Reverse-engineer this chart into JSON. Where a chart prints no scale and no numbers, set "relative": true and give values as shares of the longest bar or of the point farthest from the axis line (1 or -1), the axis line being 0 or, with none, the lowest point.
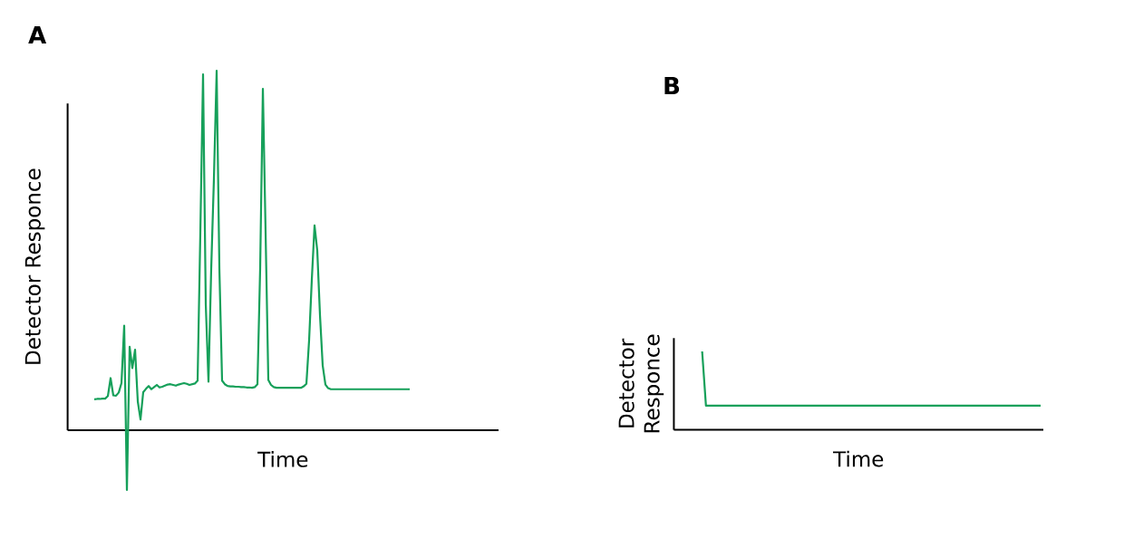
{
  "chart_data": [
    {
      "type": "line",
      "title": "A",
      "xlabel": "Time",
      "ylabel": "Detector Responce",
      "relative": true,
      "categories": [
        null,
        null,
        null,
        null,
        null,
        null,
        null,
        null,
        null,
        null,
        null,
        null,
        null,
        null,
        null,
        null,
        null,
        null,
        null,
        null,
        null,
        null,
        null,
        null,
        null,
        null,
        null,
        null,
        null,
        null,
        null,
        null,
        null,
        null,
        null,
        null,
        null,
        null,
        null,
        null,
        null,
        null,
        null,
        null,
        null,
        null,
        null,
        null,
        null,
        null,
        null,
        null,
        null,
        null,
        null,
        null,
        null,
        null,
        null,
        null,
        null,
        null,
        null,
        null,
        null,
        null,
        null,
        null,
        null,
        null,
        null,
        null,
        null,
        null,
        null,
        null,
        null,
        null,
        null,
        null,
        null,
        null,
        null,
        null,
        null,
        null,
        null,
        null,
        null,
        null,
        null,
        null,
        null,
        null,
        null,
        null,
        null,
        null,
        null,
        null,
        null,
        null,
        null,
        null,
        null,
        null,
        null,
        null,
        null,
        null,
        null,
        null,
        null,
        null,
        null,
        null,
        null
      ],
      "series": [
        {
          "color": "#16a05a",
          "values": [
            0.086,
            0.087,
            0.087,
            0.088,
            0.088,
            0.095,
            0.145,
            0.097,
            0.096,
            0.105,
            0.131,
            0.291,
            -0.166,
            0.232,
            0.173,
            0.224,
            0.08,
            0.03,
            0.106,
            0.115,
            0.123,
            0.114,
            0.12,
            0.126,
            0.119,
            0.121,
            0.124,
            0.127,
            0.128,
            0.126,
            0.124,
            0.127,
            0.129,
            0.131,
            0.129,
            0.126,
            0.128,
            0.13,
            0.138,
            0.55,
            0.99,
            0.35,
            0.135,
            0.45,
            0.7,
            1.0,
            0.45,
            0.138,
            0.128,
            0.123,
            0.122,
            0.122,
            0.121,
            0.121,
            0.12,
            0.12,
            0.119,
            0.119,
            0.118,
            0.12,
            0.128,
            0.45,
            0.95,
            0.55,
            0.14,
            0.126,
            0.12,
            0.118,
            0.118,
            0.118,
            0.118,
            0.118,
            0.118,
            0.118,
            0.118,
            0.118,
            0.118,
            0.122,
            0.129,
            0.25,
            0.42,
            0.57,
            0.5,
            0.32,
            0.18,
            0.127,
            0.117,
            0.114,
            0.114,
            0.114,
            0.114,
            0.114,
            0.114,
            0.114,
            0.114,
            0.114,
            0.114,
            0.114,
            0.114,
            0.114,
            0.114,
            0.114,
            0.114,
            0.114,
            0.114,
            0.114,
            0.114,
            0.114,
            0.114,
            0.114,
            0.114,
            0.114,
            0.114,
            0.114,
            0.114,
            0.114,
            0.114
          ]
        }
      ]
    },
    {
      "type": "line",
      "title": "B",
      "xlabel": "Time",
      "ylabel": "Detector\nResponce",
      "relative": true,
      "categories": [
        null,
        null,
        null,
        null,
        null,
        null,
        null,
        null,
        null,
        null,
        null,
        null,
        null,
        null,
        null,
        null,
        null,
        null,
        null,
        null,
        null,
        null,
        null,
        null,
        null,
        null,
        null,
        null,
        null,
        null,
        null,
        null,
        null,
        null,
        null,
        null,
        null,
        null,
        null,
        null,
        null,
        null,
        null,
        null,
        null,
        null,
        null,
        null,
        null,
        null,
        null,
        null,
        null,
        null,
        null,
        null,
        null,
        null,
        null,
        null,
        null,
        null,
        null,
        null,
        null,
        null,
        null,
        null,
        null,
        null,
        null,
        null,
        null,
        null,
        null,
        null,
        null,
        null,
        null,
        null,
        null,
        null,
        null,
        null,
        null,
        null,
        null,
        null,
        null,
        null
      ],
      "series": [
        {
          "color": "#16a05a",
          "values": [
            1.0,
            0.308,
            0.308,
            0.308,
            0.308,
            0.308,
            0.308,
            0.308,
            0.308,
            0.308,
            0.308,
            0.308,
            0.308,
            0.308,
            0.308,
            0.308,
            0.308,
            0.308,
            0.308,
            0.308,
            0.308,
            0.308,
            0.308,
            0.308,
            0.308,
            0.308,
            0.308,
            0.308,
            0.308,
            0.308,
            0.308,
            0.308,
            0.308,
            0.308,
            0.308,
            0.308,
            0.308,
            0.308,
            0.308,
            0.308,
            0.308,
            0.308,
            0.308,
            0.308,
            0.308,
            0.308,
            0.308,
            0.308,
            0.308,
            0.308,
            0.308,
            0.308,
            0.308,
            0.308,
            0.308,
            0.308,
            0.308,
            0.308,
            0.308,
            0.308,
            0.308,
            0.308,
            0.308,
            0.308,
            0.308,
            0.308,
            0.308,
            0.308,
            0.308,
            0.308,
            0.308,
            0.308,
            0.308,
            0.308,
            0.308,
            0.308,
            0.308,
            0.308,
            0.308,
            0.308,
            0.308,
            0.308,
            0.308,
            0.308,
            0.308,
            0.308,
            0.308,
            0.308,
            0.308,
            0.308
          ]
        }
      ]
    }
  ]
}
